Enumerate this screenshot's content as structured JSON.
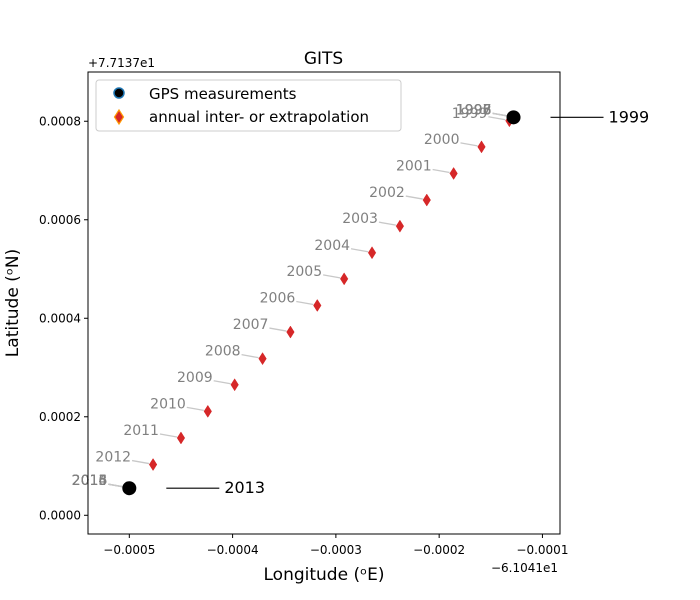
{
  "chart_data": {
    "type": "scatter",
    "title": "GITS",
    "xlabel": "Longitude (ᵒE)",
    "ylabel": "Latitude (ᵒN)",
    "x_offset_label": "−6.1041e1",
    "y_offset_label": "+7.7137e1",
    "xlim": [
      -0.00054,
      -8.3e-05
    ],
    "ylim": [
      -3.8e-05,
      0.0009
    ],
    "x_ticks": [
      {
        "value": -0.0005,
        "label": "−0.0005"
      },
      {
        "value": -0.0004,
        "label": "−0.0004"
      },
      {
        "value": -0.0003,
        "label": "−0.0003"
      },
      {
        "value": -0.0002,
        "label": "−0.0002"
      },
      {
        "value": -0.0001,
        "label": "−0.0001"
      }
    ],
    "y_ticks": [
      {
        "value": 0.0,
        "label": "0.0000"
      },
      {
        "value": 0.0002,
        "label": "0.0002"
      },
      {
        "value": 0.0004,
        "label": "0.0004"
      },
      {
        "value": 0.0006,
        "label": "0.0006"
      },
      {
        "value": 0.0008,
        "label": "0.0008"
      }
    ],
    "legend": {
      "placement": "upper-left",
      "entries": [
        "GPS measurements",
        "annual inter- or extrapolation"
      ]
    },
    "gps_measurements": [
      {
        "year": "1999",
        "x": -0.000128,
        "y": 0.000808
      },
      {
        "year": "2013",
        "x": -0.0005,
        "y": 5.5e-05
      }
    ],
    "annual_points": [
      {
        "year": "1995",
        "x": -0.000128,
        "y": 0.000808
      },
      {
        "year": "1996",
        "x": -0.000128,
        "y": 0.000808
      },
      {
        "year": "1997",
        "x": -0.000128,
        "y": 0.000808
      },
      {
        "year": "1998",
        "x": -0.000128,
        "y": 0.000808
      },
      {
        "year": "1999",
        "x": -0.000132,
        "y": 0.000801
      },
      {
        "year": "2000",
        "x": -0.000159,
        "y": 0.000748
      },
      {
        "year": "2001",
        "x": -0.000186,
        "y": 0.000694
      },
      {
        "year": "2002",
        "x": -0.000212,
        "y": 0.00064
      },
      {
        "year": "2003",
        "x": -0.000238,
        "y": 0.000587
      },
      {
        "year": "2004",
        "x": -0.000265,
        "y": 0.000533
      },
      {
        "year": "2005",
        "x": -0.000292,
        "y": 0.00048
      },
      {
        "year": "2006",
        "x": -0.000318,
        "y": 0.000426
      },
      {
        "year": "2007",
        "x": -0.000344,
        "y": 0.000372
      },
      {
        "year": "2008",
        "x": -0.000371,
        "y": 0.000318
      },
      {
        "year": "2009",
        "x": -0.000398,
        "y": 0.000265
      },
      {
        "year": "2010",
        "x": -0.000424,
        "y": 0.000211
      },
      {
        "year": "2011",
        "x": -0.00045,
        "y": 0.000157
      },
      {
        "year": "2012",
        "x": -0.000477,
        "y": 0.000103
      },
      {
        "year": "2013",
        "x": -0.0005,
        "y": 5.5e-05
      },
      {
        "year": "2014",
        "x": -0.0005,
        "y": 5.5e-05
      },
      {
        "year": "2015",
        "x": -0.0005,
        "y": 5.5e-05
      },
      {
        "year": "2016",
        "x": -0.0005,
        "y": 5.5e-05
      }
    ],
    "year_label_color": "#808080",
    "annual_color": "#d62728",
    "gps_color": "#000000",
    "grid": false
  }
}
